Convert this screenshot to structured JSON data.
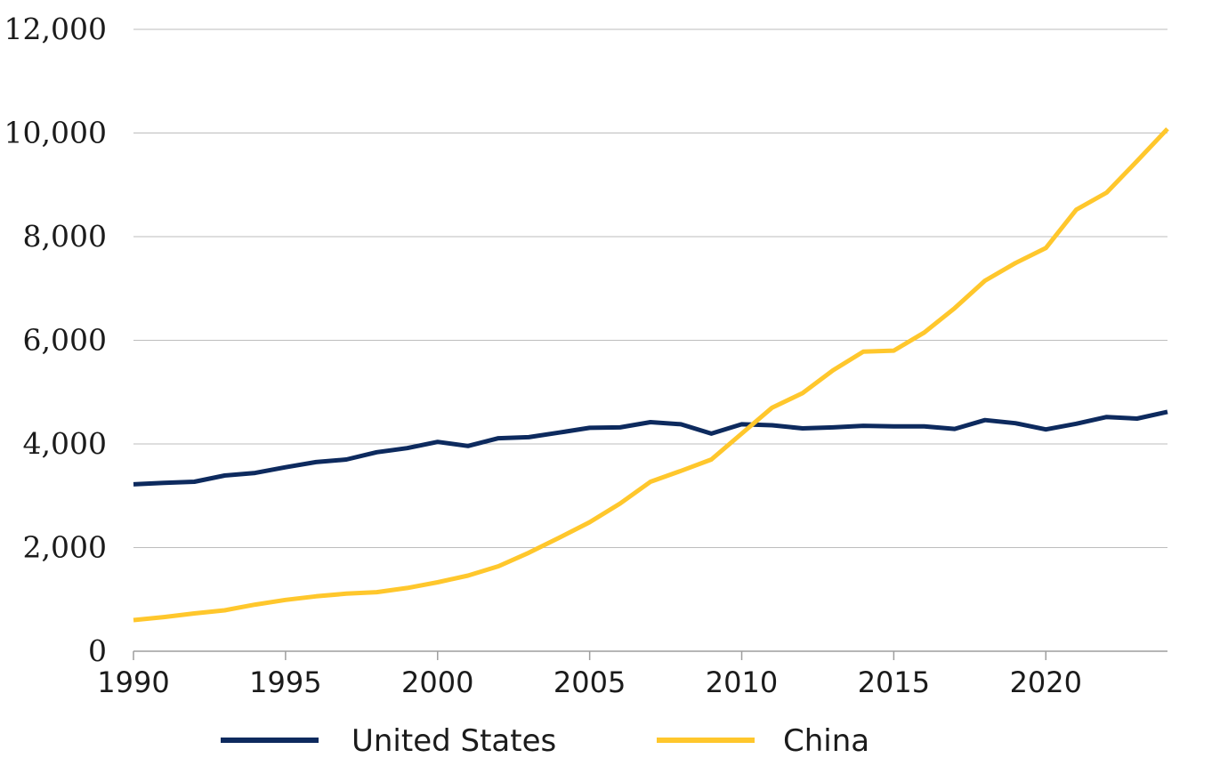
{
  "chart_data": {
    "type": "line",
    "title": "",
    "xlabel": "",
    "ylabel": "",
    "xlim": [
      1990,
      2024
    ],
    "ylim": [
      0,
      12000
    ],
    "y_ticks": [
      0,
      2000,
      4000,
      6000,
      8000,
      10000,
      12000
    ],
    "y_tick_labels": [
      "0",
      "2,000",
      "4,000",
      "6,000",
      "8,000",
      "10,000",
      "12,000"
    ],
    "x_ticks": [
      1990,
      1995,
      2000,
      2005,
      2010,
      2015,
      2020
    ],
    "x_tick_labels": [
      "1990",
      "1995",
      "2000",
      "2005",
      "2010",
      "2015",
      "2020"
    ],
    "grid": "horizontal",
    "legend_position": "bottom-center",
    "x": [
      1990,
      1991,
      1992,
      1993,
      1994,
      1995,
      1996,
      1997,
      1998,
      1999,
      2000,
      2001,
      2002,
      2003,
      2004,
      2005,
      2006,
      2007,
      2008,
      2009,
      2010,
      2011,
      2012,
      2013,
      2014,
      2015,
      2016,
      2017,
      2018,
      2019,
      2020,
      2021,
      2022,
      2023,
      2024
    ],
    "series": [
      {
        "name": "United States",
        "color": "#0d2a5e",
        "values": [
          3220,
          3250,
          3270,
          3390,
          3440,
          3550,
          3650,
          3700,
          3840,
          3920,
          4040,
          3960,
          4110,
          4130,
          4220,
          4310,
          4320,
          4420,
          4380,
          4200,
          4380,
          4360,
          4300,
          4320,
          4350,
          4340,
          4340,
          4290,
          4460,
          4400,
          4280,
          4390,
          4520,
          4490,
          4620
        ]
      },
      {
        "name": "China",
        "color": "#ffc72c",
        "values": [
          600,
          660,
          730,
          790,
          900,
          990,
          1060,
          1110,
          1140,
          1220,
          1330,
          1460,
          1640,
          1900,
          2190,
          2490,
          2850,
          3270,
          3480,
          3700,
          4200,
          4700,
          4980,
          5420,
          5780,
          5800,
          6150,
          6620,
          7150,
          7490,
          7780,
          8520,
          8850,
          9460,
          10080
        ]
      }
    ]
  }
}
